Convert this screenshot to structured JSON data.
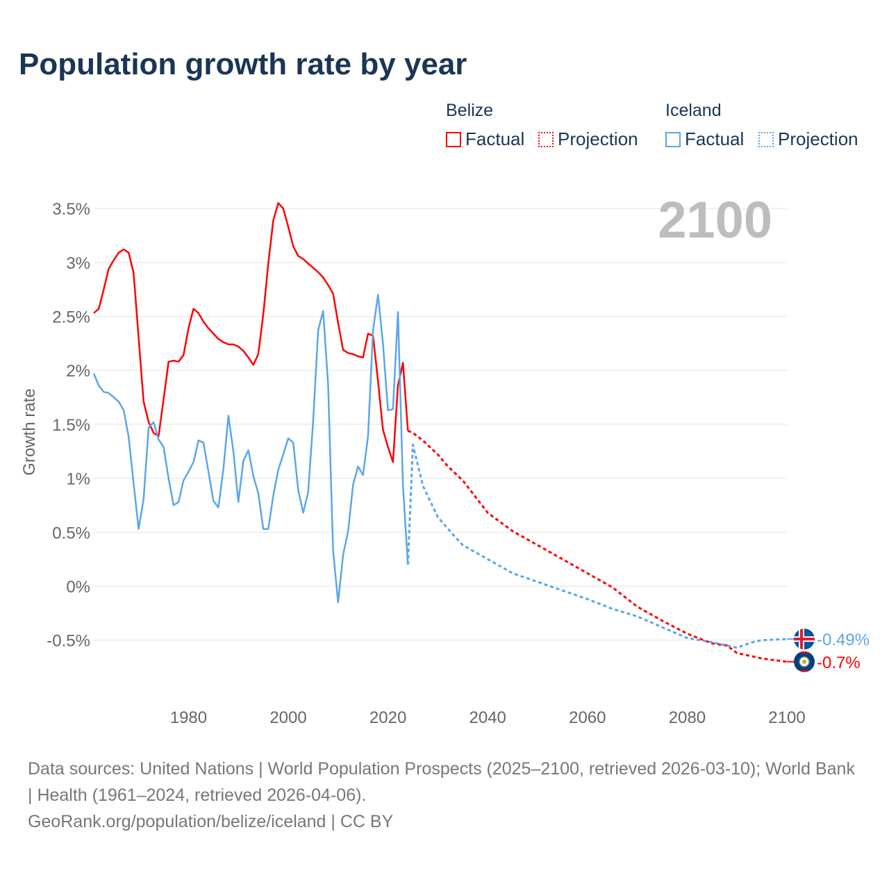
{
  "title": "Population growth rate by year",
  "legend": {
    "groups": [
      {
        "name": "Belize",
        "factual_label": "Factual",
        "projection_label": "Projection",
        "color": "#ff0000"
      },
      {
        "name": "Iceland",
        "factual_label": "Factual",
        "projection_label": "Projection",
        "color": "#5ba6e9"
      }
    ]
  },
  "year_display": "2100",
  "footer": {
    "sources": "Data sources: United Nations | World Population Prospects (2025–2100, retrieved 2026-03-10); World Bank | Health (1961–2024, retrieved 2026-04-06).",
    "credit": "GeoRank.org/population/belize/iceland | CC BY"
  },
  "chart_data": {
    "type": "line",
    "title": "Population growth rate by year",
    "xlabel": "",
    "ylabel": "Growth rate",
    "xlim": [
      1961,
      2100
    ],
    "ylim": [
      -1.0,
      3.6
    ],
    "x_ticks": [
      1980,
      2000,
      2020,
      2040,
      2060,
      2080,
      2100
    ],
    "y_ticks": [
      -0.5,
      0,
      0.5,
      1,
      1.5,
      2,
      2.5,
      3,
      3.5
    ],
    "y_tick_labels": [
      "-0.5%",
      "0%",
      "0.5%",
      "1%",
      "1.5%",
      "2%",
      "2.5%",
      "3%",
      "3.5%"
    ],
    "grid": true,
    "legend_position": "top-right",
    "series": [
      {
        "name": "Belize",
        "kind": "factual",
        "color": "#ff0000",
        "x": [
          1961,
          1962,
          1963,
          1964,
          1965,
          1966,
          1967,
          1968,
          1969,
          1970,
          1971,
          1972,
          1973,
          1974,
          1975,
          1976,
          1977,
          1978,
          1979,
          1980,
          1981,
          1982,
          1983,
          1984,
          1985,
          1986,
          1987,
          1988,
          1989,
          1990,
          1991,
          1992,
          1993,
          1994,
          1995,
          1996,
          1997,
          1998,
          1999,
          2000,
          2001,
          2002,
          2003,
          2004,
          2005,
          2006,
          2007,
          2008,
          2009,
          2010,
          2011,
          2012,
          2013,
          2014,
          2015,
          2016,
          2017,
          2018,
          2019,
          2020,
          2021,
          2022,
          2023,
          2024
        ],
        "y": [
          2.53,
          2.57,
          2.75,
          2.94,
          3.02,
          3.09,
          3.12,
          3.09,
          2.9,
          2.3,
          1.71,
          1.52,
          1.42,
          1.39,
          1.73,
          2.08,
          2.09,
          2.08,
          2.14,
          2.39,
          2.57,
          2.53,
          2.45,
          2.39,
          2.34,
          2.29,
          2.26,
          2.24,
          2.24,
          2.22,
          2.18,
          2.12,
          2.05,
          2.15,
          2.52,
          2.99,
          3.39,
          3.55,
          3.5,
          3.33,
          3.15,
          3.06,
          3.03,
          2.99,
          2.95,
          2.91,
          2.86,
          2.79,
          2.71,
          2.44,
          2.19,
          2.16,
          2.15,
          2.13,
          2.12,
          2.34,
          2.32,
          1.9,
          1.45,
          1.29,
          1.15,
          1.86,
          2.07,
          1.44
        ]
      },
      {
        "name": "Belize",
        "kind": "projection",
        "color": "#ff0000",
        "x": [
          2024,
          2025,
          2027,
          2030,
          2032,
          2035,
          2040,
          2045,
          2050,
          2055,
          2060,
          2065,
          2070,
          2075,
          2080,
          2085,
          2088,
          2090,
          2095,
          2100
        ],
        "y": [
          1.44,
          1.42,
          1.35,
          1.22,
          1.11,
          0.98,
          0.68,
          0.51,
          0.38,
          0.25,
          0.12,
          -0.01,
          -0.19,
          -0.32,
          -0.44,
          -0.53,
          -0.55,
          -0.62,
          -0.67,
          -0.7
        ]
      },
      {
        "name": "Iceland",
        "kind": "factual",
        "color": "#5ba6e9",
        "x": [
          1961,
          1962,
          1963,
          1964,
          1965,
          1966,
          1967,
          1968,
          1969,
          1970,
          1971,
          1972,
          1973,
          1974,
          1975,
          1976,
          1977,
          1978,
          1979,
          1980,
          1981,
          1982,
          1983,
          1984,
          1985,
          1986,
          1987,
          1988,
          1989,
          1990,
          1991,
          1992,
          1993,
          1994,
          1995,
          1996,
          1997,
          1998,
          1999,
          2000,
          2001,
          2002,
          2003,
          2004,
          2005,
          2006,
          2007,
          2008,
          2009,
          2010,
          2011,
          2012,
          2013,
          2014,
          2015,
          2016,
          2017,
          2018,
          2019,
          2020,
          2021,
          2022,
          2023,
          2024
        ],
        "y": [
          1.97,
          1.86,
          1.8,
          1.79,
          1.75,
          1.71,
          1.63,
          1.38,
          0.95,
          0.53,
          0.81,
          1.47,
          1.52,
          1.36,
          1.29,
          1.0,
          0.75,
          0.78,
          0.98,
          1.06,
          1.15,
          1.35,
          1.33,
          1.06,
          0.79,
          0.73,
          1.09,
          1.58,
          1.25,
          0.78,
          1.16,
          1.26,
          1.02,
          0.86,
          0.53,
          0.53,
          0.84,
          1.08,
          1.22,
          1.37,
          1.33,
          0.89,
          0.68,
          0.87,
          1.53,
          2.37,
          2.55,
          1.86,
          0.33,
          -0.15,
          0.29,
          0.51,
          0.94,
          1.11,
          1.03,
          1.39,
          2.37,
          2.7,
          2.25,
          1.63,
          1.64,
          2.54,
          0.93,
          0.2
        ]
      },
      {
        "name": "Iceland",
        "kind": "projection",
        "color": "#5ba6e9",
        "x": [
          2024,
          2025,
          2027,
          2030,
          2033,
          2035,
          2040,
          2045,
          2050,
          2055,
          2060,
          2065,
          2070,
          2075,
          2080,
          2085,
          2090,
          2093,
          2095,
          2100
        ],
        "y": [
          0.2,
          1.31,
          0.93,
          0.64,
          0.48,
          0.38,
          0.25,
          0.12,
          0.04,
          -0.04,
          -0.12,
          -0.21,
          -0.28,
          -0.38,
          -0.48,
          -0.52,
          -0.57,
          -0.52,
          -0.5,
          -0.49
        ]
      }
    ],
    "end_labels": [
      {
        "name": "Iceland",
        "value": -0.49,
        "text": "-0.49%",
        "color": "#5ba6e9"
      },
      {
        "name": "Belize",
        "value": -0.7,
        "text": "-0.7%",
        "color": "#ff0000"
      }
    ]
  }
}
